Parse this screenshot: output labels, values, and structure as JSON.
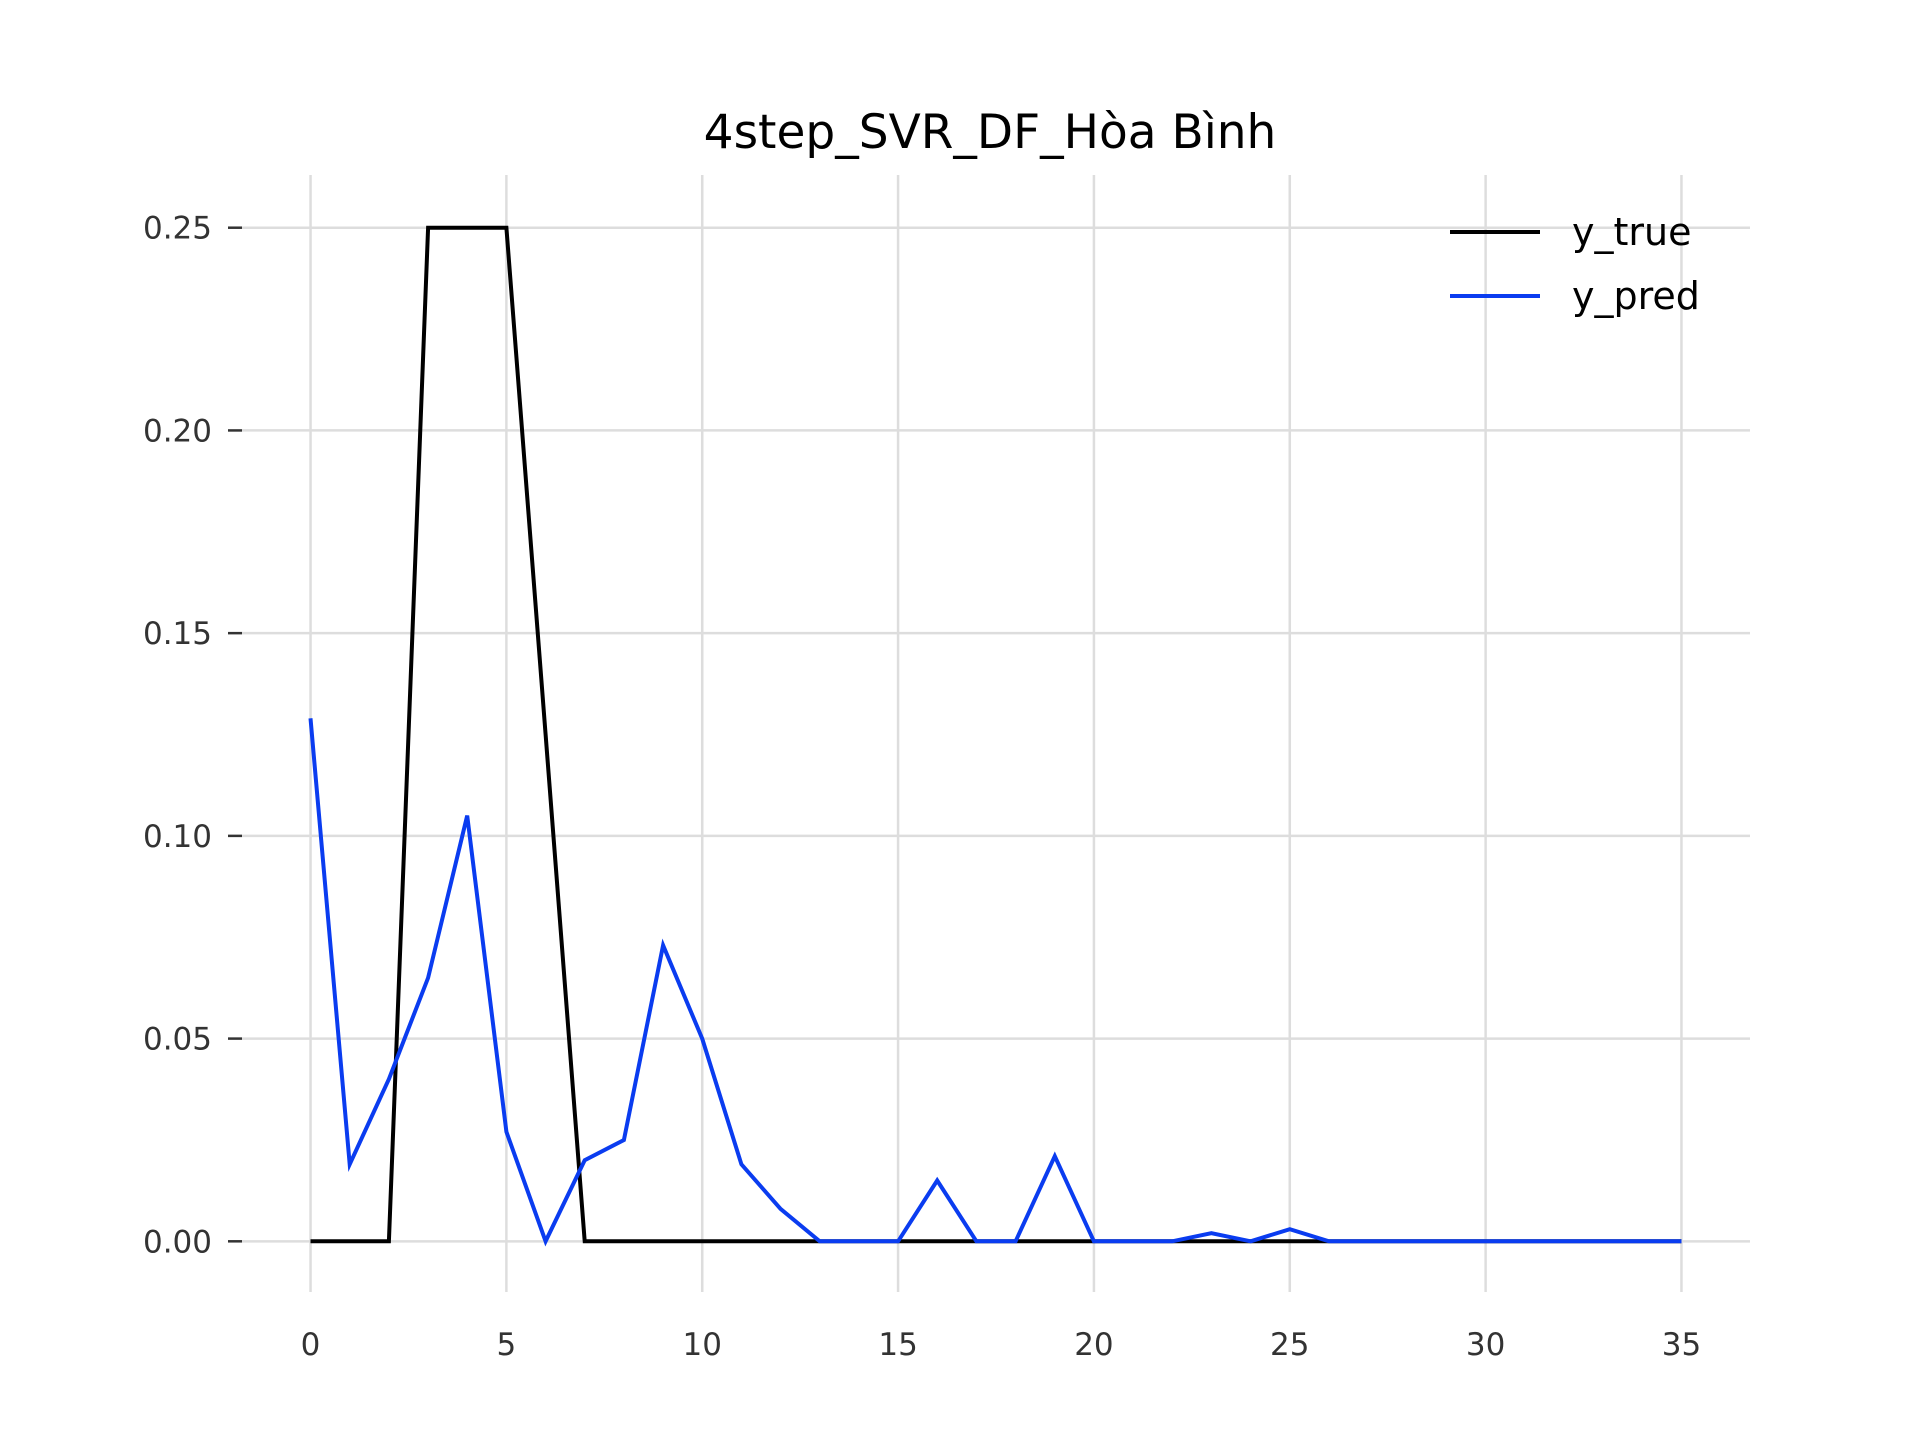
{
  "chart_data": {
    "type": "line",
    "title": "4step_SVR_DF_Hòa Bình",
    "xlabel": "",
    "ylabel": "",
    "xlim": [
      -1.75,
      36.75
    ],
    "ylim": [
      -0.0125,
      0.263
    ],
    "x_ticks": [
      0,
      5,
      10,
      15,
      20,
      25,
      30,
      35
    ],
    "x_tick_labels": [
      "0",
      "5",
      "10",
      "15",
      "20",
      "25",
      "30",
      "35"
    ],
    "y_ticks": [
      0.0,
      0.05,
      0.1,
      0.15,
      0.2,
      0.25
    ],
    "y_tick_labels": [
      "0.00",
      "0.05",
      "0.10",
      "0.15",
      "0.20",
      "0.25"
    ],
    "grid": true,
    "legend_position": "top-right",
    "series": [
      {
        "name": "y_true",
        "color": "#000000",
        "x": [
          0,
          1,
          2,
          3,
          4,
          5,
          6,
          7,
          8,
          9,
          10,
          11,
          12,
          13,
          14,
          15,
          16,
          17,
          18,
          19,
          20,
          21,
          22,
          23,
          24,
          25,
          26,
          27,
          28,
          29,
          30,
          31,
          32,
          33,
          34,
          35
        ],
        "values": [
          0,
          0,
          0,
          0.25,
          0.25,
          0.25,
          0.125,
          0,
          0,
          0,
          0,
          0,
          0,
          0,
          0,
          0,
          0,
          0,
          0,
          0,
          0,
          0,
          0,
          0,
          0,
          0,
          0,
          0,
          0,
          0,
          0,
          0,
          0,
          0,
          0,
          0
        ]
      },
      {
        "name": "y_pred",
        "color": "#0a3cf0",
        "x": [
          0,
          1,
          2,
          3,
          4,
          5,
          6,
          7,
          8,
          9,
          10,
          11,
          12,
          13,
          14,
          15,
          16,
          17,
          18,
          19,
          20,
          21,
          22,
          23,
          24,
          25,
          26,
          27,
          28,
          29,
          30,
          31,
          32,
          33,
          34,
          35
        ],
        "values": [
          0.129,
          0.019,
          0.04,
          0.065,
          0.105,
          0.027,
          0,
          0.02,
          0.025,
          0.073,
          0.05,
          0.019,
          0.008,
          0,
          0,
          0,
          0.015,
          0,
          0,
          0.021,
          0,
          0,
          0,
          0.002,
          0,
          0.003,
          0,
          0,
          0,
          0,
          0,
          0,
          0,
          0,
          0,
          0
        ]
      }
    ]
  }
}
